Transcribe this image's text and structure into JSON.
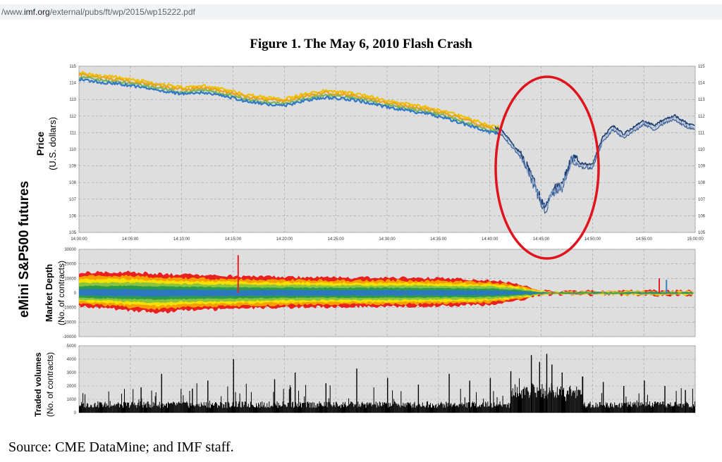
{
  "browser": {
    "url_prefix": "/www.",
    "url_host": "imf.org",
    "url_path": "/external/pubs/ft/wp/2015/wp15222.pdf"
  },
  "figure_title": "Figure 1. The May 6, 2010 Flash Crash",
  "source_note": "Source: CME DataMine; and IMF staff.",
  "side_label": "eMini S&P500 futures",
  "chart_data": [
    {
      "type": "line",
      "ylabel_line1": "Price",
      "ylabel_line2": "(U.S. dollars)",
      "xlim": [
        "14:00:00",
        "15:00:00"
      ],
      "x_ticks": [
        "14:00:00",
        "14:05:00",
        "14:10:00",
        "14:15:00",
        "14:20:00",
        "14:25:00",
        "14:30:00",
        "14:35:00",
        "14:40:00",
        "14:45:00",
        "14:50:00",
        "14:55:00",
        "15:00:00"
      ],
      "ylim": [
        105,
        115
      ],
      "y_ticks": [
        "115",
        "114",
        "113",
        "112",
        "111",
        "110",
        "109",
        "108",
        "107",
        "106",
        "105"
      ],
      "grid": true,
      "x_minutes": [
        0,
        2,
        4,
        6,
        8,
        10,
        12,
        14,
        16,
        18,
        20,
        22,
        24,
        26,
        28,
        30,
        32,
        34,
        36,
        38,
        40,
        41,
        42,
        43,
        44,
        45,
        45.5,
        46,
        47,
        48,
        49,
        50,
        51,
        52,
        53,
        54,
        55,
        56,
        57,
        58,
        59,
        60
      ],
      "values": [
        114.4,
        114.2,
        114.1,
        113.9,
        113.7,
        113.5,
        113.6,
        113.4,
        113.1,
        112.9,
        112.8,
        113.1,
        113.3,
        113.2,
        113,
        112.7,
        112.5,
        112.3,
        112,
        111.6,
        111.2,
        111.1,
        110.4,
        109.6,
        108.4,
        106.8,
        106.4,
        107.4,
        107.7,
        109.4,
        109,
        109,
        110.6,
        111.3,
        110.8,
        111.2,
        111.6,
        111.3,
        111.7,
        111.9,
        111.5,
        111.3
      ],
      "annotation": "red-ellipse-around-crash"
    },
    {
      "type": "area",
      "ylabel_line1": "Market Depth",
      "ylabel_line2": "(No. of contracts)",
      "ylim": [
        -30000,
        30000
      ],
      "y_ticks": [
        "30000",
        "20000",
        "10000",
        "0",
        "-10000",
        "-20000",
        "-30000"
      ],
      "x_minutes": [
        0,
        5,
        8,
        10,
        15,
        20,
        25,
        30,
        35,
        40,
        42,
        44,
        45,
        46,
        50,
        55,
        60
      ],
      "bid_depth": [
        14000,
        14500,
        13000,
        12500,
        11500,
        11000,
        10500,
        10500,
        10000,
        9000,
        7000,
        4000,
        1500,
        1000,
        1200,
        1500,
        1500
      ],
      "ask_depth": [
        -9000,
        -12000,
        -13500,
        -12000,
        -11000,
        -10000,
        -9500,
        -9500,
        -9000,
        -8000,
        -6000,
        -3500,
        -1500,
        -1000,
        -1200,
        -1500,
        -1500
      ],
      "band_colors": [
        "#e82020",
        "#f5a000",
        "#f5e000",
        "#8bc53f",
        "#2e9a4a",
        "#2b78c0"
      ]
    },
    {
      "type": "bar",
      "ylabel_line1": "Traded volumes",
      "ylabel_line2": "(No. of contracts)",
      "ylim": [
        0,
        5000
      ],
      "y_ticks": [
        "5000",
        "4000",
        "3000",
        "2000",
        "1000",
        "0"
      ],
      "x_minutes": [
        2,
        6,
        8,
        11,
        12.5,
        15,
        19,
        21,
        24,
        27,
        30,
        33,
        36,
        38,
        40,
        42,
        44,
        44.8,
        45.5,
        46,
        47,
        49,
        51,
        53,
        55,
        57,
        59
      ],
      "values": [
        800,
        1900,
        2900,
        1800,
        2400,
        4000,
        2500,
        3000,
        2200,
        3300,
        2600,
        2100,
        2900,
        2400,
        2600,
        3100,
        4300,
        3800,
        4400,
        3600,
        3000,
        2700,
        2300,
        2000,
        2400,
        2000,
        1700
      ]
    }
  ],
  "colors": {
    "plot_bg": "#dedede",
    "grid": "#9a9a9a",
    "price_band": [
      "#f0c000",
      "#e8a317",
      "#7fb35a",
      "#2f79c6"
    ],
    "price_crash_line": "#1f3f73",
    "annotation": "#e0141d",
    "volume_bars": "#000000"
  }
}
